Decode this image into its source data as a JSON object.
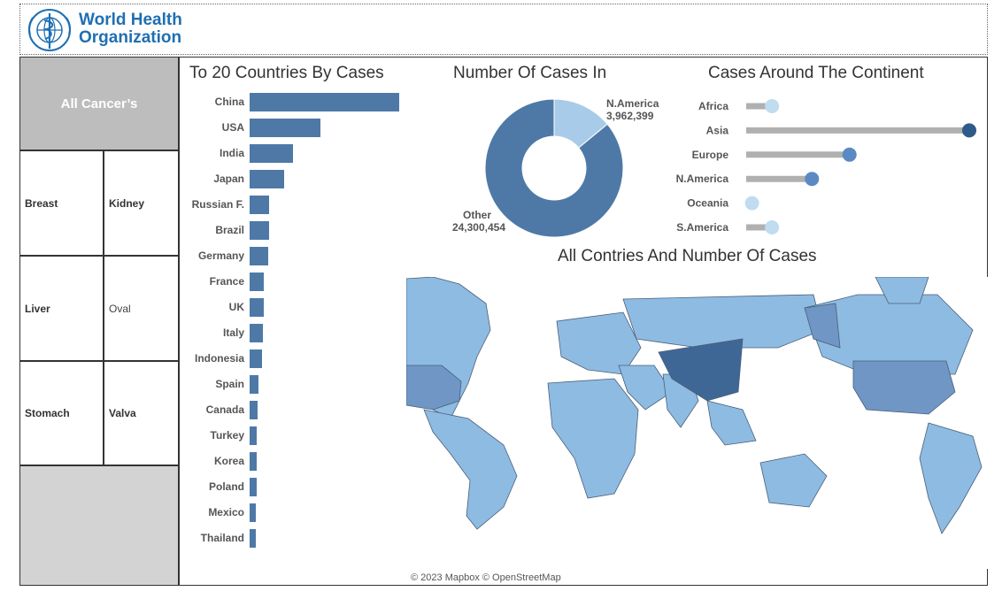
{
  "brand": {
    "line1": "World Health",
    "line2": "Organization"
  },
  "sidebar": {
    "all_label": "All Cancer’s",
    "cancers": [
      "Breast",
      "Kidney",
      "Liver",
      "Oval",
      "Stomach",
      "Valva"
    ]
  },
  "titles": {
    "bars": "To 20 Countries By Cases",
    "donut": "Number Of Cases In",
    "continent": "Cases Around The Continent",
    "map": "All Contries And Number Of Cases"
  },
  "map_credit": "© 2023 Mapbox © OpenStreetMap",
  "colors": {
    "dark": "#2e5b8a",
    "bar": "#4e79a7",
    "mid": "#5b8ac2",
    "light": "#a9cbea",
    "pale": "#bfdcf1",
    "grey": "#b0b0b0"
  },
  "chart_data": [
    {
      "type": "bar",
      "orientation": "horizontal",
      "title": "To 20 Countries By Cases",
      "categories": [
        "China",
        "USA",
        "India",
        "Japan",
        "Russian F.",
        "Brazil",
        "Germany",
        "France",
        "UK",
        "Italy",
        "Indonesia",
        "Spain",
        "Canada",
        "Turkey",
        "Korea",
        "Poland",
        "Mexico",
        "Thailand"
      ],
      "values": [
        4820000,
        2280000,
        1410000,
        1120000,
        640000,
        630000,
        600000,
        470000,
        460000,
        440000,
        410000,
        290000,
        260000,
        240000,
        240000,
        220000,
        210000,
        190000
      ],
      "xlim": [
        0,
        4820000
      ]
    },
    {
      "type": "pie",
      "title": "Number Of Cases In",
      "donut": true,
      "slices": [
        {
          "label": "N.America",
          "value": 3962399,
          "display": "3,962,399"
        },
        {
          "label": "Other",
          "value": 24300454,
          "display": "24,300,454"
        }
      ]
    },
    {
      "type": "dot",
      "title": "Cases Around The Continent",
      "categories": [
        "Africa",
        "Asia",
        "Europe",
        "N.America",
        "Oceania",
        "S.America"
      ],
      "values": [
        1100000,
        9500000,
        4400000,
        2800000,
        250000,
        1100000
      ],
      "xlim": [
        0,
        9500000
      ]
    }
  ]
}
